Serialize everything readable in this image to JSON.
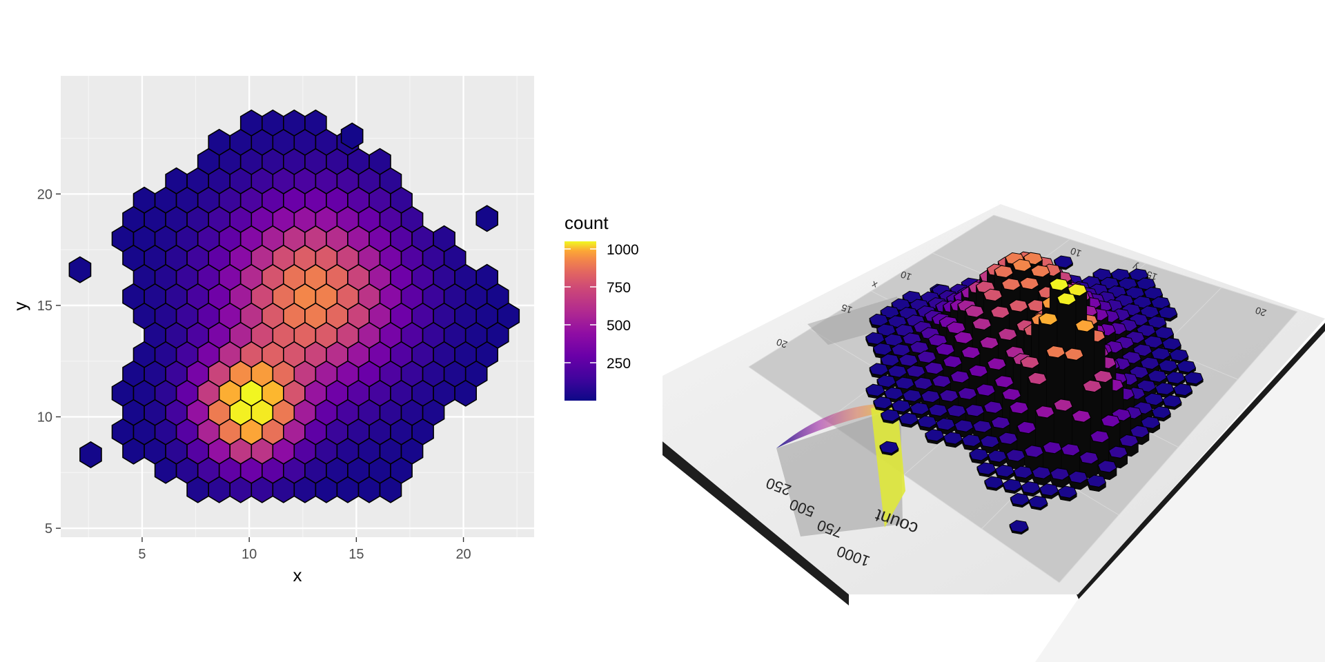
{
  "chart_data": [
    {
      "type": "hexbin",
      "title": "",
      "xlabel": "x",
      "ylabel": "y",
      "xlim": [
        1.2,
        23.3
      ],
      "ylim": [
        4.6,
        25.3
      ],
      "xticks": [
        5,
        10,
        15,
        20
      ],
      "yticks": [
        5,
        10,
        15,
        20
      ],
      "grid": true,
      "fill_scale": "plasma",
      "legend": {
        "title": "count",
        "position": "right",
        "range": [
          0,
          1050
        ],
        "ticks": [
          250,
          500,
          750,
          1000
        ],
        "tick_labels": [
          "250",
          "500",
          "750",
          "1000"
        ]
      },
      "bin_width": 1,
      "clusters": [
        {
          "x": 10,
          "y": 10.4,
          "peak": 1000,
          "sigma": 1.55
        },
        {
          "x": 12.9,
          "y": 15.4,
          "peak": 730,
          "sigma": 2.7
        }
      ],
      "baseline_count": 15,
      "outliers": [
        {
          "x": 14.8,
          "y": 22.6
        },
        {
          "x": 21.1,
          "y": 18.9
        },
        {
          "x": 2.6,
          "y": 8.3
        },
        {
          "x": 2.1,
          "y": 16.6
        }
      ]
    },
    {
      "type": "hexbin-3d",
      "title": "",
      "xlabel": "x",
      "ylabel": "y",
      "zlabel": "count",
      "x_ticks": [
        "10",
        "15",
        "20"
      ],
      "y_ticks": [
        "10",
        "15",
        "20"
      ],
      "z_ticks": [
        "250",
        "500",
        "750",
        "1000"
      ],
      "fill_scale": "plasma",
      "peaks": [
        {
          "x": 10,
          "y": 10.4,
          "height": 1000
        },
        {
          "x": 12.9,
          "y": 15.4,
          "height": 730
        }
      ]
    }
  ]
}
